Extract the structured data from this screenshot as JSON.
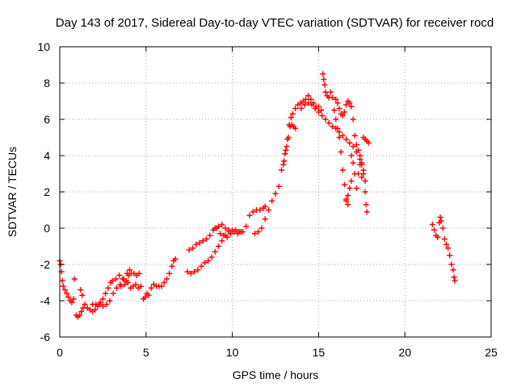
{
  "chart_data": {
    "type": "scatter",
    "title": "Day 143 of 2017, Sidereal Day-to-day VTEC variation (SDTVAR) for receiver rocd",
    "xlabel": "GPS time / hours",
    "ylabel": "SDTVAR / TECUs",
    "xlim": [
      0,
      25
    ],
    "ylim": [
      -6,
      10
    ],
    "xticks": [
      "0",
      "5",
      "10",
      "15",
      "20",
      "25"
    ],
    "yticks": [
      "-6",
      "-4",
      "-2",
      "0",
      "2",
      "4",
      "6",
      "8",
      "10"
    ],
    "grid": true,
    "marker": "plus",
    "color": "#ff0000",
    "series": [
      {
        "points": [
          [
            0.0,
            -1.8
          ],
          [
            0.05,
            -2.0
          ],
          [
            0.1,
            -2.4
          ],
          [
            0.15,
            -2.9
          ],
          [
            0.2,
            -3.2
          ],
          [
            0.3,
            -3.4
          ],
          [
            0.4,
            -3.6
          ],
          [
            0.5,
            -3.8
          ],
          [
            0.6,
            -4.0
          ],
          [
            0.7,
            -4.1
          ],
          [
            0.8,
            -3.9
          ],
          [
            0.85,
            -2.8
          ],
          [
            0.95,
            -4.8
          ],
          [
            1.05,
            -4.9
          ],
          [
            1.15,
            -4.8
          ],
          [
            1.25,
            -4.6
          ],
          [
            1.35,
            -4.4
          ],
          [
            1.2,
            -3.4
          ],
          [
            1.3,
            -3.7
          ],
          [
            1.45,
            -4.2
          ],
          [
            1.6,
            -4.4
          ],
          [
            1.75,
            -4.5
          ],
          [
            1.9,
            -4.6
          ],
          [
            2.05,
            -4.5
          ],
          [
            2.2,
            -4.3
          ],
          [
            2.35,
            -4.1
          ],
          [
            2.5,
            -3.9
          ],
          [
            2.65,
            -3.6
          ],
          [
            2.8,
            -3.3
          ],
          [
            2.95,
            -3.0
          ],
          [
            1.9,
            -4.2
          ],
          [
            2.1,
            -4.2
          ],
          [
            2.3,
            -4.2
          ],
          [
            2.5,
            -4.3
          ],
          [
            2.7,
            -4.2
          ],
          [
            2.9,
            -4.0
          ],
          [
            3.1,
            -3.6
          ],
          [
            3.3,
            -3.3
          ],
          [
            3.5,
            -3.1
          ],
          [
            3.7,
            -2.8
          ],
          [
            3.9,
            -2.5
          ],
          [
            4.05,
            -2.3
          ],
          [
            3.05,
            -2.9
          ],
          [
            3.25,
            -2.8
          ],
          [
            3.45,
            -2.6
          ],
          [
            3.65,
            -2.8
          ],
          [
            3.85,
            -2.9
          ],
          [
            4.0,
            -2.6
          ],
          [
            4.15,
            -2.5
          ],
          [
            4.3,
            -2.5
          ],
          [
            4.45,
            -2.6
          ],
          [
            4.6,
            -2.5
          ],
          [
            3.55,
            -3.2
          ],
          [
            3.75,
            -3.1
          ],
          [
            3.95,
            -3.0
          ],
          [
            4.1,
            -3.3
          ],
          [
            4.25,
            -3.2
          ],
          [
            4.4,
            -3.1
          ],
          [
            4.55,
            -3.3
          ],
          [
            4.7,
            -3.2
          ],
          [
            4.85,
            -3.9
          ],
          [
            4.95,
            -3.8
          ],
          [
            5.05,
            -3.6
          ],
          [
            5.15,
            -3.7
          ],
          [
            5.3,
            -3.3
          ],
          [
            5.45,
            -3.1
          ],
          [
            5.6,
            -3.2
          ],
          [
            5.75,
            -3.2
          ],
          [
            5.9,
            -3.2
          ],
          [
            6.05,
            -3.0
          ],
          [
            6.2,
            -2.8
          ],
          [
            6.35,
            -2.5
          ],
          [
            6.5,
            -2.1
          ],
          [
            6.6,
            -1.8
          ],
          [
            6.7,
            -1.7
          ],
          [
            7.4,
            -2.4
          ],
          [
            7.6,
            -2.5
          ],
          [
            7.8,
            -2.4
          ],
          [
            8.0,
            -2.3
          ],
          [
            8.2,
            -2.1
          ],
          [
            8.4,
            -1.9
          ],
          [
            8.6,
            -1.8
          ],
          [
            8.8,
            -1.6
          ],
          [
            9.0,
            -1.3
          ],
          [
            9.2,
            -1.0
          ],
          [
            9.4,
            -0.7
          ],
          [
            9.6,
            -0.4
          ],
          [
            9.8,
            -0.2
          ],
          [
            10.0,
            -0.1
          ],
          [
            10.2,
            -0.1
          ],
          [
            10.4,
            -0.2
          ],
          [
            10.6,
            -0.2
          ],
          [
            10.8,
            0.1
          ],
          [
            11.0,
            0.7
          ],
          [
            11.2,
            0.9
          ],
          [
            11.4,
            1.0
          ],
          [
            11.6,
            1.0
          ],
          [
            11.8,
            1.1
          ],
          [
            11.9,
            1.2
          ],
          [
            7.5,
            -1.2
          ],
          [
            7.7,
            -1.1
          ],
          [
            7.9,
            -0.9
          ],
          [
            8.1,
            -0.8
          ],
          [
            8.3,
            -0.7
          ],
          [
            8.5,
            -0.6
          ],
          [
            8.7,
            -0.4
          ],
          [
            8.9,
            -0.1
          ],
          [
            9.1,
            0.0
          ],
          [
            9.3,
            -0.3
          ],
          [
            9.5,
            -0.4
          ],
          [
            9.7,
            -0.5
          ],
          [
            9.9,
            -0.3
          ],
          [
            10.1,
            -0.2
          ],
          [
            10.3,
            -0.3
          ],
          [
            10.5,
            -0.2
          ],
          [
            9.0,
            0.0
          ],
          [
            9.2,
            0.1
          ],
          [
            9.4,
            0.2
          ],
          [
            9.6,
            0.0
          ],
          [
            9.8,
            -0.1
          ],
          [
            11.3,
            -0.3
          ],
          [
            11.5,
            -0.2
          ],
          [
            11.7,
            0.0
          ],
          [
            11.9,
            0.5
          ],
          [
            12.1,
            1.0
          ],
          [
            12.3,
            1.5
          ],
          [
            12.5,
            1.9
          ],
          [
            12.7,
            2.3
          ],
          [
            12.85,
            3.2
          ],
          [
            12.95,
            3.5
          ],
          [
            13.05,
            4.1
          ],
          [
            13.15,
            4.5
          ],
          [
            13.25,
            5.0
          ],
          [
            13.35,
            5.6
          ],
          [
            13.45,
            5.7
          ],
          [
            13.55,
            5.6
          ],
          [
            13.65,
            5.5
          ],
          [
            13.0,
            3.7
          ],
          [
            13.1,
            4.3
          ],
          [
            13.2,
            4.9
          ],
          [
            13.3,
            5.7
          ],
          [
            13.4,
            6.1
          ],
          [
            13.5,
            6.3
          ],
          [
            13.65,
            6.6
          ],
          [
            13.8,
            6.8
          ],
          [
            13.95,
            6.9
          ],
          [
            14.1,
            7.0
          ],
          [
            14.25,
            7.1
          ],
          [
            14.4,
            7.3
          ],
          [
            14.55,
            7.1
          ],
          [
            14.7,
            6.9
          ],
          [
            14.85,
            6.7
          ],
          [
            15.0,
            6.7
          ],
          [
            15.15,
            6.5
          ],
          [
            14.0,
            6.6
          ],
          [
            14.2,
            6.8
          ],
          [
            14.4,
            6.9
          ],
          [
            14.6,
            6.8
          ],
          [
            14.8,
            6.6
          ],
          [
            15.0,
            6.4
          ],
          [
            15.2,
            6.2
          ],
          [
            15.4,
            6.0
          ],
          [
            15.6,
            5.8
          ],
          [
            15.8,
            5.6
          ],
          [
            16.0,
            5.5
          ],
          [
            16.2,
            5.3
          ],
          [
            16.4,
            5.1
          ],
          [
            16.6,
            4.9
          ],
          [
            16.8,
            4.7
          ],
          [
            17.0,
            4.5
          ],
          [
            17.2,
            4.2
          ],
          [
            17.4,
            3.8
          ],
          [
            17.5,
            3.5
          ],
          [
            17.6,
            3.2
          ],
          [
            17.7,
            2.0
          ],
          [
            17.75,
            1.3
          ],
          [
            17.8,
            0.9
          ],
          [
            15.25,
            8.5
          ],
          [
            15.3,
            8.2
          ],
          [
            15.35,
            7.9
          ],
          [
            15.4,
            7.5
          ],
          [
            15.5,
            7.3
          ],
          [
            15.6,
            7.2
          ],
          [
            15.7,
            7.5
          ],
          [
            15.8,
            7.2
          ],
          [
            15.9,
            6.5
          ],
          [
            16.0,
            6.0
          ],
          [
            16.1,
            5.5
          ],
          [
            16.2,
            5.0
          ],
          [
            16.3,
            4.2
          ],
          [
            16.4,
            3.2
          ],
          [
            16.5,
            2.4
          ],
          [
            16.6,
            1.6
          ],
          [
            16.7,
            1.3
          ],
          [
            16.0,
            7.1
          ],
          [
            16.1,
            6.9
          ],
          [
            16.2,
            6.6
          ],
          [
            16.3,
            6.3
          ],
          [
            16.4,
            6.2
          ],
          [
            16.5,
            6.4
          ],
          [
            16.6,
            6.8
          ],
          [
            16.7,
            7.0
          ],
          [
            16.8,
            6.9
          ],
          [
            16.9,
            6.7
          ],
          [
            17.0,
            6.0
          ],
          [
            17.1,
            5.1
          ],
          [
            17.2,
            4.6
          ],
          [
            17.3,
            4.3
          ],
          [
            17.4,
            4.0
          ],
          [
            17.5,
            3.6
          ],
          [
            17.6,
            3.0
          ],
          [
            17.7,
            2.6
          ],
          [
            16.9,
            4.0
          ],
          [
            17.0,
            3.6
          ],
          [
            17.1,
            3.0
          ],
          [
            17.2,
            2.2
          ],
          [
            17.3,
            3.0
          ],
          [
            17.4,
            3.5
          ],
          [
            17.5,
            2.8
          ],
          [
            16.6,
            1.5
          ],
          [
            16.7,
            1.8
          ],
          [
            16.8,
            2.2
          ],
          [
            16.9,
            2.6
          ],
          [
            17.6,
            5.0
          ],
          [
            17.7,
            4.9
          ],
          [
            17.8,
            4.8
          ],
          [
            17.9,
            4.7
          ],
          [
            21.6,
            0.2
          ],
          [
            21.7,
            -0.1
          ],
          [
            21.8,
            -0.4
          ],
          [
            21.9,
            -0.5
          ],
          [
            22.0,
            0.3
          ],
          [
            22.05,
            0.6
          ],
          [
            22.1,
            0.4
          ],
          [
            22.2,
            0.0
          ],
          [
            22.3,
            -0.6
          ],
          [
            22.4,
            -0.9
          ],
          [
            22.5,
            -1.1
          ],
          [
            22.6,
            -1.5
          ],
          [
            22.7,
            -2.0
          ],
          [
            22.8,
            -2.3
          ],
          [
            22.85,
            -2.7
          ],
          [
            22.9,
            -2.9
          ]
        ]
      }
    ]
  }
}
